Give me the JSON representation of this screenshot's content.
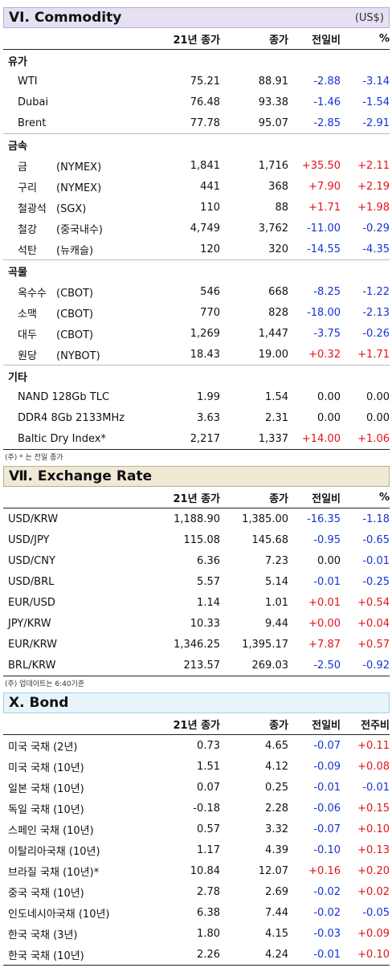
{
  "commodity": {
    "title": "VI. Commodity",
    "unit": "(US$)",
    "headers": [
      "21년 종가",
      "종가",
      "전일비",
      "%"
    ],
    "groups": [
      {
        "name": "유가",
        "rows": [
          {
            "name": "WTI",
            "exch": "",
            "close21": "75.21",
            "close": "88.91",
            "chg": "-2.88",
            "pct": "-3.14"
          },
          {
            "name": "Dubai",
            "exch": "",
            "close21": "76.48",
            "close": "93.38",
            "chg": "-1.46",
            "pct": "-1.54"
          },
          {
            "name": "Brent",
            "exch": "",
            "close21": "77.78",
            "close": "95.07",
            "chg": "-2.85",
            "pct": "-2.91"
          }
        ]
      },
      {
        "name": "금속",
        "rows": [
          {
            "name": "금",
            "exch": "(NYMEX)",
            "close21": "1,841",
            "close": "1,716",
            "chg": "+35.50",
            "pct": "+2.11"
          },
          {
            "name": "구리",
            "exch": "(NYMEX)",
            "close21": "441",
            "close": "368",
            "chg": "+7.90",
            "pct": "+2.19"
          },
          {
            "name": "철광석",
            "exch": "(SGX)",
            "close21": "110",
            "close": "88",
            "chg": "+1.71",
            "pct": "+1.98"
          },
          {
            "name": "철강",
            "exch": "(중국내수)",
            "close21": "4,749",
            "close": "3,762",
            "chg": "-11.00",
            "pct": "-0.29"
          },
          {
            "name": "석탄",
            "exch": "(뉴캐슬)",
            "close21": "120",
            "close": "320",
            "chg": "-14.55",
            "pct": "-4.35"
          }
        ]
      },
      {
        "name": "곡물",
        "rows": [
          {
            "name": "옥수수",
            "exch": "(CBOT)",
            "close21": "546",
            "close": "668",
            "chg": "-8.25",
            "pct": "-1.22"
          },
          {
            "name": "소맥",
            "exch": "(CBOT)",
            "close21": "770",
            "close": "828",
            "chg": "-18.00",
            "pct": "-2.13"
          },
          {
            "name": "대두",
            "exch": "(CBOT)",
            "close21": "1,269",
            "close": "1,447",
            "chg": "-3.75",
            "pct": "-0.26"
          },
          {
            "name": "원당",
            "exch": "(NYBOT)",
            "close21": "18.43",
            "close": "19.00",
            "chg": "+0.32",
            "pct": "+1.71"
          }
        ]
      },
      {
        "name": "기타",
        "rows": [
          {
            "name": "NAND 128Gb TLC",
            "exch": "",
            "close21": "1.99",
            "close": "1.54",
            "chg": "0.00",
            "pct": "0.00"
          },
          {
            "name": "DDR4 8Gb 2133MHz",
            "exch": "",
            "close21": "3.63",
            "close": "2.31",
            "chg": "0.00",
            "pct": "0.00"
          },
          {
            "name": "Baltic Dry Index*",
            "exch": "",
            "close21": "2,217",
            "close": "1,337",
            "chg": "+14.00",
            "pct": "+1.06"
          }
        ]
      }
    ],
    "note": "(주) * 는 전일 종가"
  },
  "fx": {
    "title": "Ⅶ. Exchange Rate",
    "headers": [
      "21년 종가",
      "종가",
      "전일비",
      "%"
    ],
    "rows": [
      {
        "name": "USD/KRW",
        "close21": "1,188.90",
        "close": "1,385.00",
        "chg": "-16.35",
        "pct": "-1.18"
      },
      {
        "name": "USD/JPY",
        "close21": "115.08",
        "close": "145.68",
        "chg": "-0.95",
        "pct": "-0.65"
      },
      {
        "name": "USD/CNY",
        "close21": "6.36",
        "close": "7.23",
        "chg": "0.00",
        "pct": "-0.01"
      },
      {
        "name": "USD/BRL",
        "close21": "5.57",
        "close": "5.14",
        "chg": "-0.01",
        "pct": "-0.25"
      },
      {
        "name": "EUR/USD",
        "close21": "1.14",
        "close": "1.01",
        "chg": "+0.01",
        "pct": "+0.54"
      },
      {
        "name": "JPY/KRW",
        "close21": "10.33",
        "close": "9.44",
        "chg": "+0.00",
        "pct": "+0.04"
      },
      {
        "name": "EUR/KRW",
        "close21": "1,346.25",
        "close": "1,395.17",
        "chg": "+7.87",
        "pct": "+0.57"
      },
      {
        "name": "BRL/KRW",
        "close21": "213.57",
        "close": "269.03",
        "chg": "-2.50",
        "pct": "-0.92"
      }
    ],
    "note": "(주) 업데이트는 6:40기준"
  },
  "bond": {
    "title": "X. Bond",
    "headers": [
      "21년 종가",
      "종가",
      "전일비",
      "전주비"
    ],
    "rows": [
      {
        "name": "미국 국채 (2년)",
        "close21": "0.73",
        "close": "4.65",
        "chg": "-0.07",
        "pct": "+0.11"
      },
      {
        "name": "미국 국채 (10년)",
        "close21": "1.51",
        "close": "4.12",
        "chg": "-0.09",
        "pct": "+0.08"
      },
      {
        "name": "일본 국채 (10년)",
        "close21": "0.07",
        "close": "0.25",
        "chg": "-0.01",
        "pct": "-0.01"
      },
      {
        "name": "독일 국채 (10년)",
        "close21": "-0.18",
        "close": "2.28",
        "chg": "-0.06",
        "pct": "+0.15"
      },
      {
        "name": "스페인 국채 (10년)",
        "close21": "0.57",
        "close": "3.32",
        "chg": "-0.07",
        "pct": "+0.10"
      },
      {
        "name": "이탈리아국채 (10년)",
        "close21": "1.17",
        "close": "4.39",
        "chg": "-0.10",
        "pct": "+0.13"
      },
      {
        "name": "브라질 국채 (10년)*",
        "close21": "10.84",
        "close": "12.07",
        "chg": "+0.16",
        "pct": "+0.20"
      },
      {
        "name": "중국 국채 (10년)",
        "close21": "2.78",
        "close": "2.69",
        "chg": "-0.02",
        "pct": "+0.02"
      },
      {
        "name": "인도네시아국채 (10년)",
        "close21": "6.38",
        "close": "7.44",
        "chg": "-0.02",
        "pct": "-0.05"
      },
      {
        "name": "한국 국채 (3년)",
        "close21": "1.80",
        "close": "4.15",
        "chg": "-0.03",
        "pct": "+0.09"
      },
      {
        "name": "한국 국채 (10년)",
        "close21": "2.26",
        "close": "4.24",
        "chg": "-0.01",
        "pct": "+0.10"
      }
    ]
  },
  "colors": {
    "positive": "#e3121a",
    "negative": "#1533d6",
    "commodity_header": "#e6e0f2",
    "fx_header": "#efe9d6",
    "bond_header": "#e7f4fa"
  }
}
